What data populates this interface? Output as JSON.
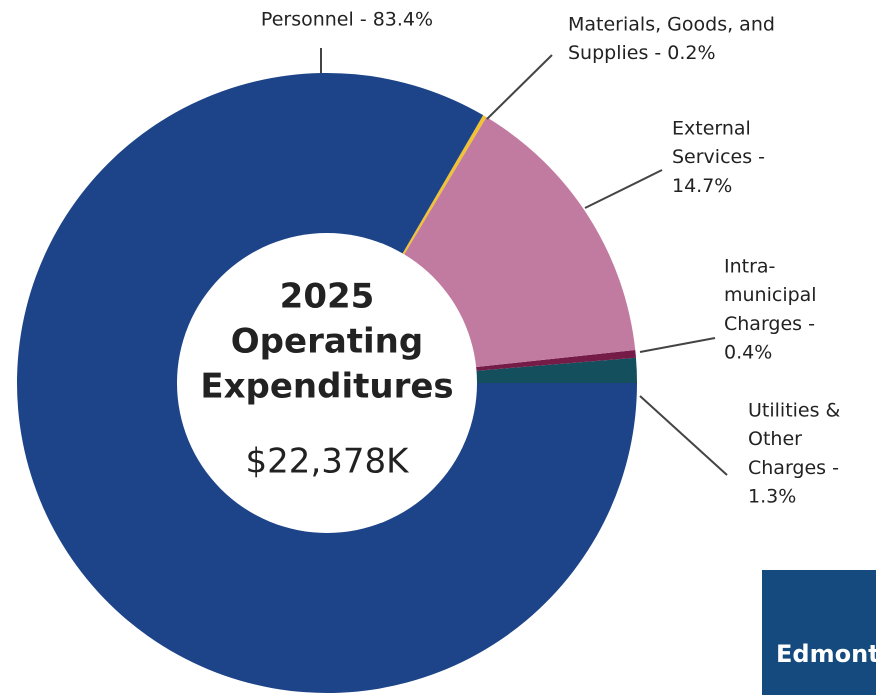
{
  "chart_data": {
    "type": "donut",
    "title": [
      "2025",
      "Operating",
      "Expenditures"
    ],
    "total_label": "$22,378K",
    "labels": [
      [
        "Personnel - 83.4%"
      ],
      [
        "Materials, Goods, and",
        "Supplies - 0.2%"
      ],
      [
        "External",
        "Services -",
        "14.7%"
      ],
      [
        "Intra-",
        "municipal",
        "Charges -",
        "0.4%"
      ],
      [
        "Utilities &",
        "Other",
        "Charges -",
        "1.3%"
      ]
    ],
    "values": [
      83.4,
      0.2,
      14.7,
      0.4,
      1.3
    ],
    "colors": [
      "#1d4488",
      "#f1c232",
      "#c27ba0",
      "#741b47",
      "#134f5c"
    ],
    "logo": "Edmonton"
  }
}
